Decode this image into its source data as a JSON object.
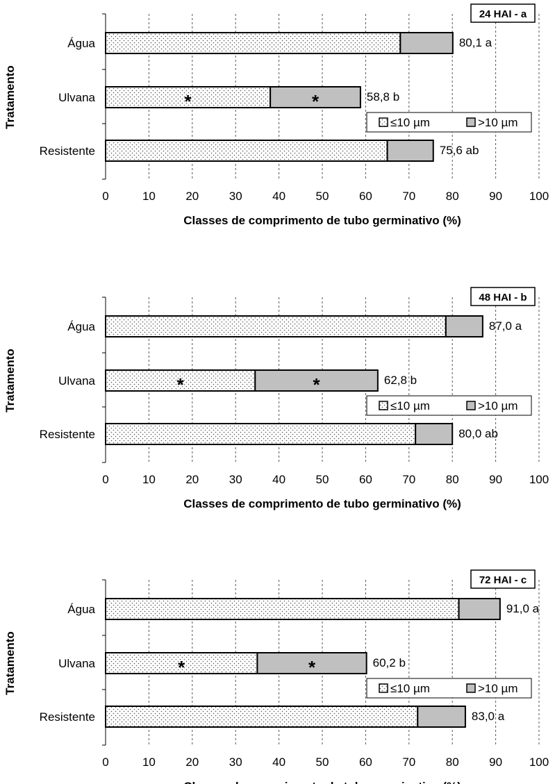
{
  "chart_data": [
    {
      "type": "bar",
      "stacked": true,
      "orientation": "horizontal",
      "title": "24 HAI - a",
      "xlabel": "Classes de comprimento de tubo germinativo (%)",
      "ylabel": "Tratamento",
      "xlim": [
        0,
        100
      ],
      "x_ticks": [
        "0",
        "10",
        "20",
        "30",
        "40",
        "50",
        "60",
        "70",
        "80",
        "90",
        "100"
      ],
      "categories": [
        "Água",
        "Ulvana",
        "Resistente"
      ],
      "series": [
        {
          "name": "≤10 µm",
          "values": [
            68,
            38,
            65
          ],
          "color": "#f2f2f2",
          "pattern": "dotted",
          "asterisks": [
            false,
            true,
            false
          ]
        },
        {
          "name": ">10 µm",
          "values": [
            12.1,
            20.8,
            10.6
          ],
          "color": "#c0c0c0",
          "asterisks": [
            false,
            true,
            false
          ]
        }
      ],
      "totals": [
        80.1,
        58.8,
        75.6
      ],
      "data_labels": [
        "80,1 a",
        "58,8 b",
        "75,6 ab"
      ],
      "grid": "vertical dashed",
      "legend_position": "right, between Ulvana and Resistente"
    },
    {
      "type": "bar",
      "stacked": true,
      "orientation": "horizontal",
      "title": "48 HAI - b",
      "xlabel": "Classes de comprimento de tubo germinativo (%)",
      "ylabel": "Tratamento",
      "xlim": [
        0,
        100
      ],
      "x_ticks": [
        "0",
        "10",
        "20",
        "30",
        "40",
        "50",
        "60",
        "70",
        "80",
        "90",
        "100"
      ],
      "categories": [
        "Água",
        "Ulvana",
        "Resistente"
      ],
      "series": [
        {
          "name": "≤10 µm",
          "values": [
            78.5,
            34.5,
            71.5
          ],
          "color": "#f2f2f2",
          "pattern": "dotted",
          "asterisks": [
            false,
            true,
            false
          ]
        },
        {
          "name": ">10 µm",
          "values": [
            8.5,
            28.3,
            8.5
          ],
          "color": "#c0c0c0",
          "asterisks": [
            false,
            true,
            false
          ]
        }
      ],
      "totals": [
        87.0,
        62.8,
        80.0
      ],
      "data_labels": [
        "87,0 a",
        "62,8 b",
        "80,0 ab"
      ],
      "grid": "vertical dashed",
      "legend_position": "right, between Ulvana and Resistente"
    },
    {
      "type": "bar",
      "stacked": true,
      "orientation": "horizontal",
      "title": "72 HAI - c",
      "xlabel": "Classes de comprimento de tubo germinativo (%)",
      "ylabel": "Tratamento",
      "xlim": [
        0,
        100
      ],
      "x_ticks": [
        "0",
        "10",
        "20",
        "30",
        "40",
        "50",
        "60",
        "70",
        "80",
        "90",
        "100"
      ],
      "categories": [
        "Água",
        "Ulvana",
        "Resistente"
      ],
      "series": [
        {
          "name": "≤10 µm",
          "values": [
            81.5,
            35,
            72
          ],
          "color": "#f2f2f2",
          "pattern": "dotted",
          "asterisks": [
            false,
            true,
            false
          ]
        },
        {
          "name": ">10 µm",
          "values": [
            9.5,
            25.2,
            11
          ],
          "color": "#c0c0c0",
          "asterisks": [
            false,
            true,
            false
          ]
        }
      ],
      "totals": [
        91.0,
        60.2,
        83.0
      ],
      "data_labels": [
        "91,0 a",
        "60,2 b",
        "83,0 a"
      ],
      "grid": "vertical dashed",
      "legend_position": "right, between Ulvana and Resistente"
    }
  ],
  "asterisk_symbol": "*"
}
